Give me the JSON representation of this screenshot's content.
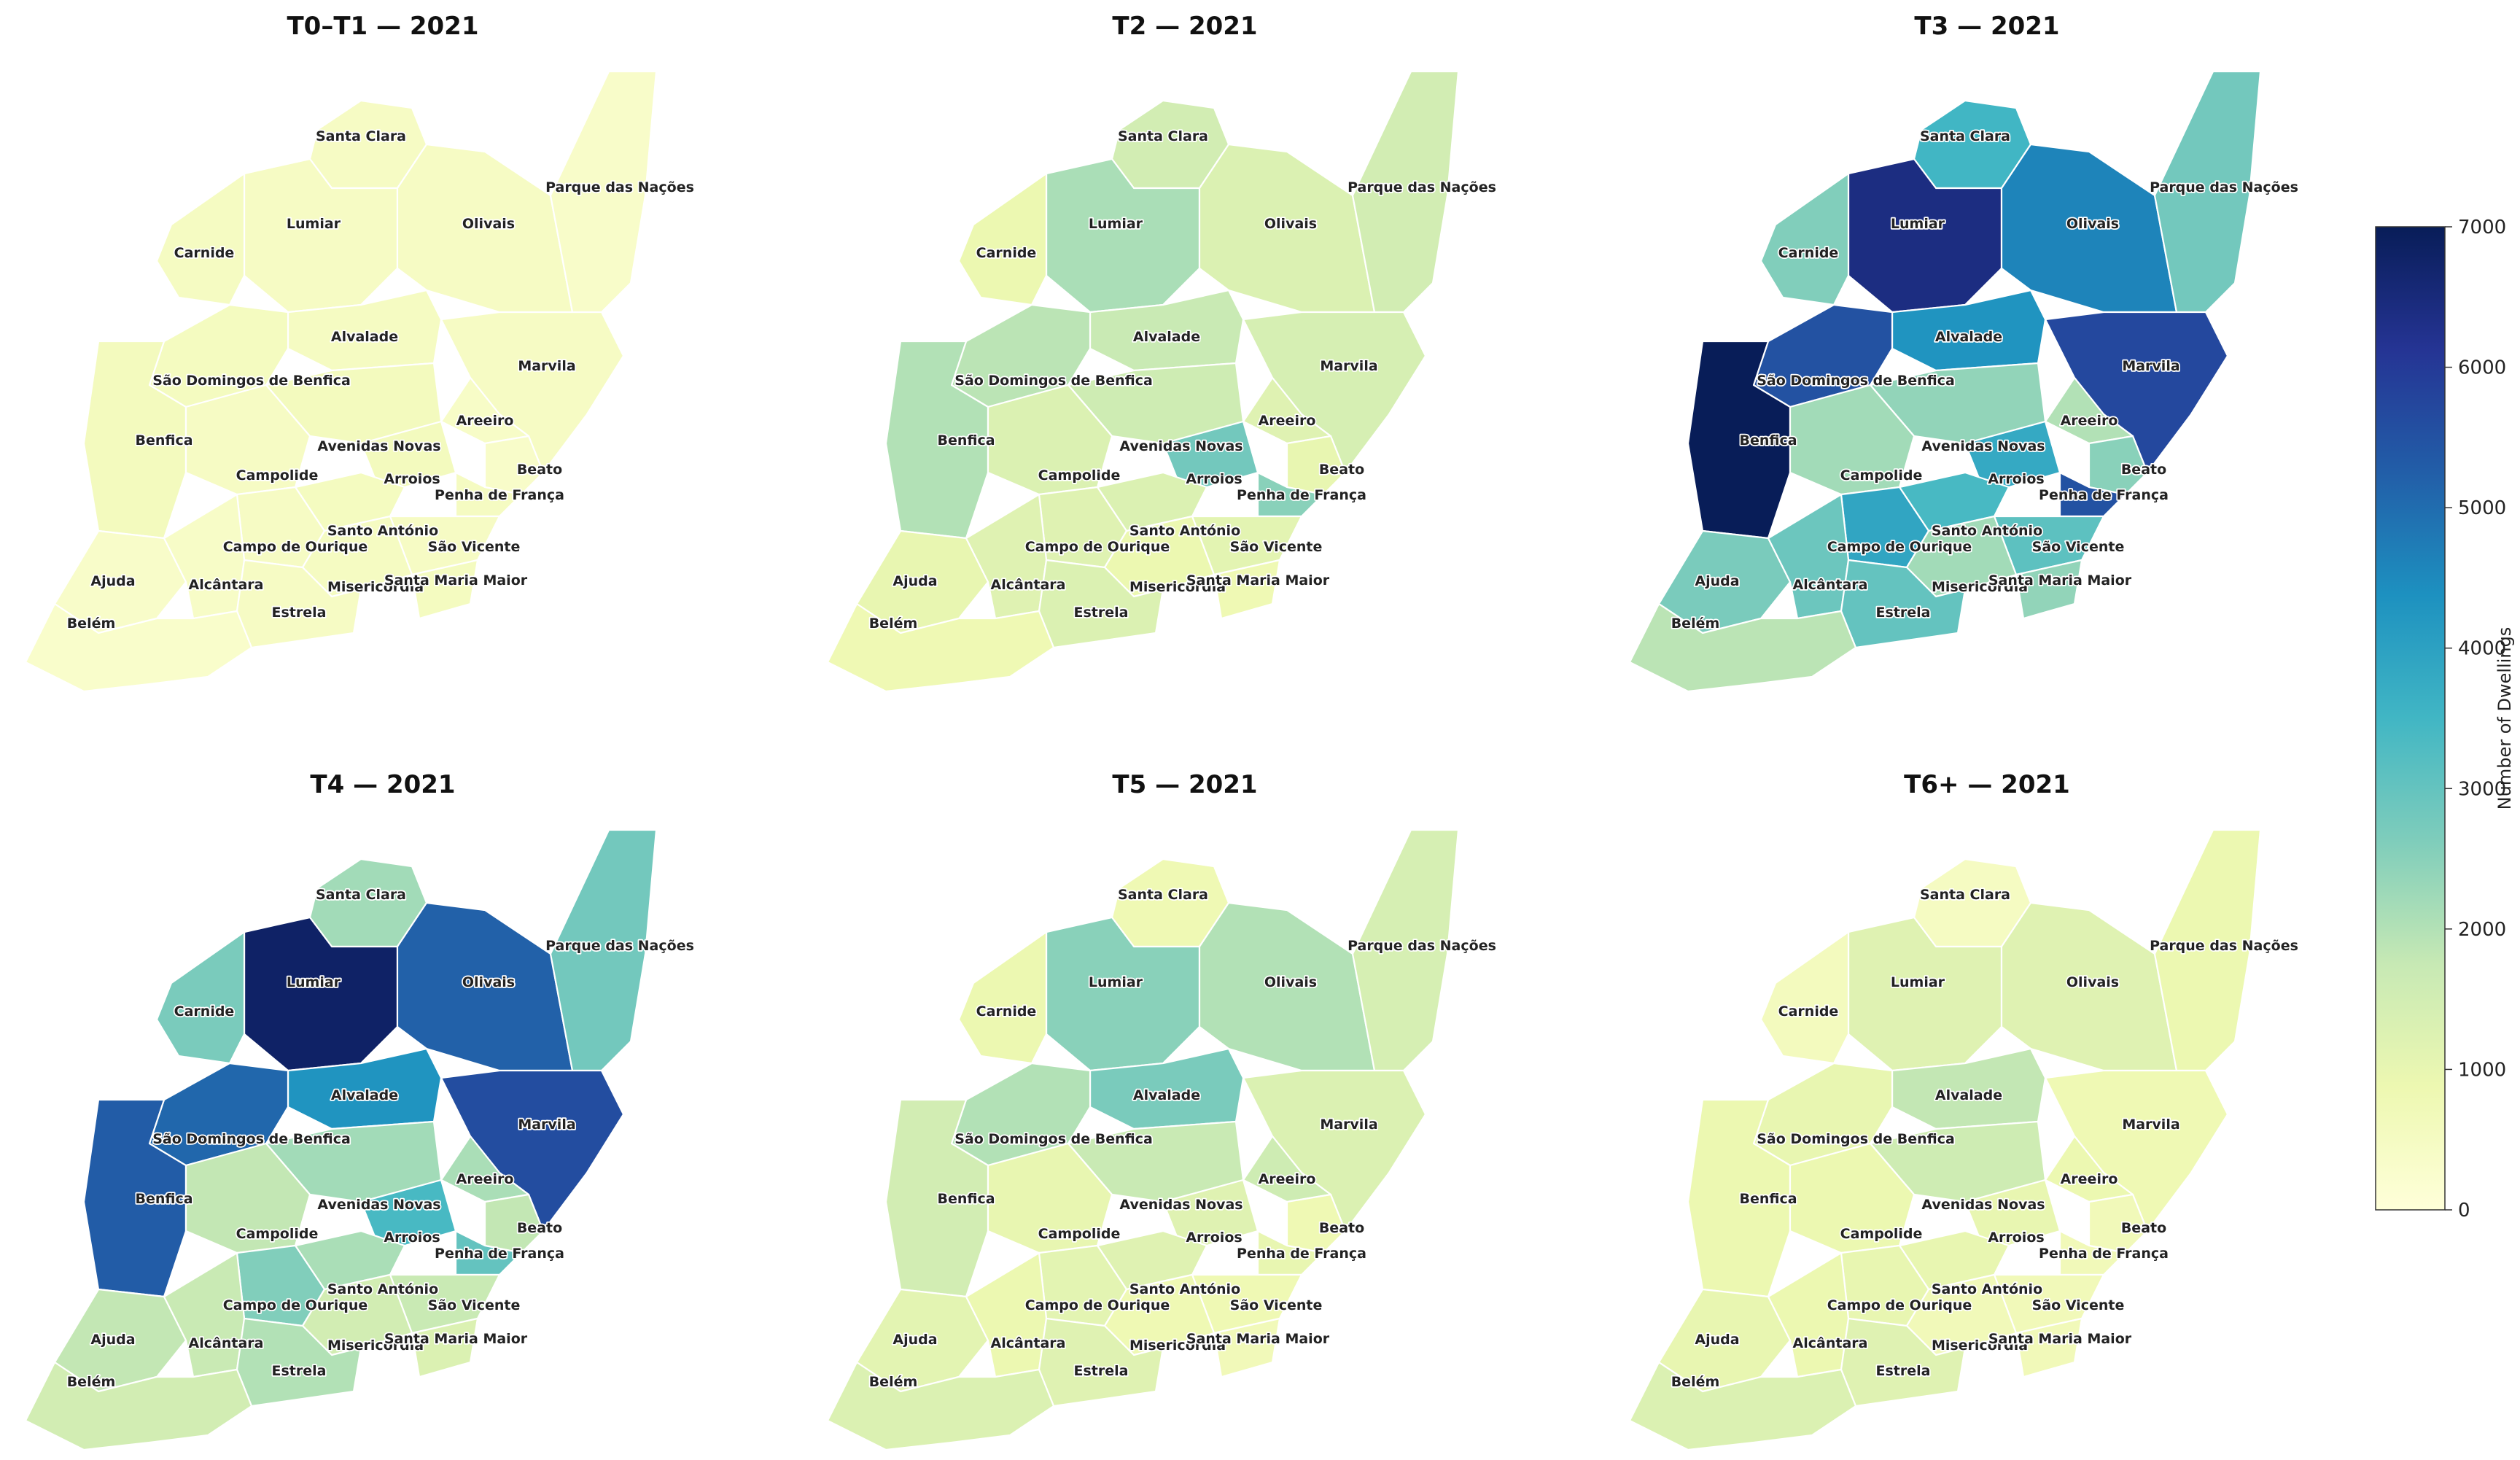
{
  "panels": [
    {
      "id": "t0t1",
      "title": "T0–T1  — 2021",
      "values": {
        "Santa Clara": 450,
        "Lumiar": 450,
        "Olivais": 450,
        "Parque das Nações": 350,
        "Carnide": 500,
        "Alvalade": 500,
        "Marvila": 450,
        "São Domingos de Benfica": 550,
        "Areeiro": 400,
        "Benfica": 600,
        "Avenidas Novas": 600,
        "Campolide": 450,
        "Arroios": 600,
        "Beato": 350,
        "Penha de França": 500,
        "Santo António": 550,
        "Campo de Ourique": 450,
        "São Vicente": 450,
        "Ajuda": 350,
        "Alcântara": 400,
        "Misericórdia": 500,
        "Santa Maria Maior": 550,
        "Estrela": 450,
        "Belém": 300
      }
    },
    {
      "id": "t2",
      "title": "T2  — 2021",
      "values": {
        "Santa Clara": 1500,
        "Lumiar": 2100,
        "Olivais": 1300,
        "Parque das Nações": 1500,
        "Carnide": 900,
        "Alvalade": 1700,
        "Marvila": 1400,
        "São Domingos de Benfica": 1900,
        "Areeiro": 1200,
        "Benfica": 2000,
        "Avenidas Novas": 1600,
        "Campolide": 1300,
        "Arroios": 2800,
        "Beato": 1000,
        "Penha de França": 2500,
        "Santo António": 1300,
        "Campo de Ourique": 1200,
        "São Vicente": 1100,
        "Ajuda": 1000,
        "Alcântara": 1200,
        "Misericórdia": 900,
        "Santa Maria Maior": 800,
        "Estrela": 1300,
        "Belém": 800
      }
    },
    {
      "id": "t3",
      "title": "T3  — 2021",
      "values": {
        "Santa Clara": 3500,
        "Lumiar": 6400,
        "Olivais": 4600,
        "Parque das Nações": 2800,
        "Carnide": 2600,
        "Alvalade": 4300,
        "Marvila": 5700,
        "São Domingos de Benfica": 5500,
        "Areeiro": 2000,
        "Benfica": 7000,
        "Avenidas Novas": 2400,
        "Campolide": 2200,
        "Arroios": 3800,
        "Beato": 2500,
        "Penha de França": 5500,
        "Santo António": 3400,
        "Campo de Ourique": 3900,
        "São Vicente": 3100,
        "Ajuda": 2700,
        "Alcântara": 2900,
        "Misericórdia": 2200,
        "Santa Maria Maior": 2400,
        "Estrela": 3000,
        "Belém": 1900
      }
    },
    {
      "id": "t4",
      "title": "T4  — 2021",
      "values": {
        "Santa Clara": 2200,
        "Lumiar": 6800,
        "Olivais": 5200,
        "Parque das Nações": 2800,
        "Carnide": 2700,
        "Alvalade": 4300,
        "Marvila": 5600,
        "São Domingos de Benfica": 5100,
        "Areeiro": 2100,
        "Benfica": 5300,
        "Avenidas Novas": 2200,
        "Campolide": 1800,
        "Arroios": 3400,
        "Beato": 1800,
        "Penha de França": 3000,
        "Santo António": 2100,
        "Campo de Ourique": 2600,
        "São Vicente": 1700,
        "Ajuda": 1800,
        "Alcântara": 1700,
        "Misericórdia": 1500,
        "Santa Maria Maior": 1300,
        "Estrela": 2000,
        "Belém": 1500
      }
    },
    {
      "id": "t5",
      "title": "T5  — 2021",
      "values": {
        "Santa Clara": 800,
        "Lumiar": 2500,
        "Olivais": 2000,
        "Parque das Nações": 1400,
        "Carnide": 900,
        "Alvalade": 2700,
        "Marvila": 1300,
        "São Domingos de Benfica": 2000,
        "Areeiro": 1600,
        "Benfica": 1500,
        "Avenidas Novas": 1700,
        "Campolide": 1000,
        "Arroios": 1200,
        "Beato": 800,
        "Penha de França": 1000,
        "Santo António": 1200,
        "Campo de Ourique": 1100,
        "São Vicente": 800,
        "Ajuda": 1100,
        "Alcântara": 900,
        "Misericórdia": 800,
        "Santa Maria Maior": 700,
        "Estrela": 1200,
        "Belém": 1300
      }
    },
    {
      "id": "t6",
      "title": "T6+  — 2021",
      "values": {
        "Santa Clara": 500,
        "Lumiar": 1200,
        "Olivais": 1200,
        "Parque das Nações": 900,
        "Carnide": 600,
        "Alvalade": 1800,
        "Marvila": 800,
        "São Domingos de Benfica": 1000,
        "Areeiro": 900,
        "Benfica": 900,
        "Avenidas Novas": 1600,
        "Campolide": 900,
        "Arroios": 1000,
        "Beato": 700,
        "Penha de França": 700,
        "Santo António": 1000,
        "Campo de Ourique": 1000,
        "São Vicente": 700,
        "Ajuda": 1000,
        "Alcântara": 900,
        "Misericórdia": 700,
        "Santa Maria Maior": 700,
        "Estrela": 1200,
        "Belém": 1300
      }
    }
  ],
  "colorbar": {
    "label": "Number of Dwellings",
    "min": 0,
    "max": 7000,
    "ticks": [
      "0",
      "1000",
      "2000",
      "3000",
      "4000",
      "5000",
      "6000",
      "7000"
    ],
    "colormap": [
      "#ffffd9",
      "#edf8b1",
      "#c7e9b4",
      "#7fcdbb",
      "#41b6c4",
      "#1d91c0",
      "#225ea8",
      "#253494",
      "#081d58"
    ]
  }
}
